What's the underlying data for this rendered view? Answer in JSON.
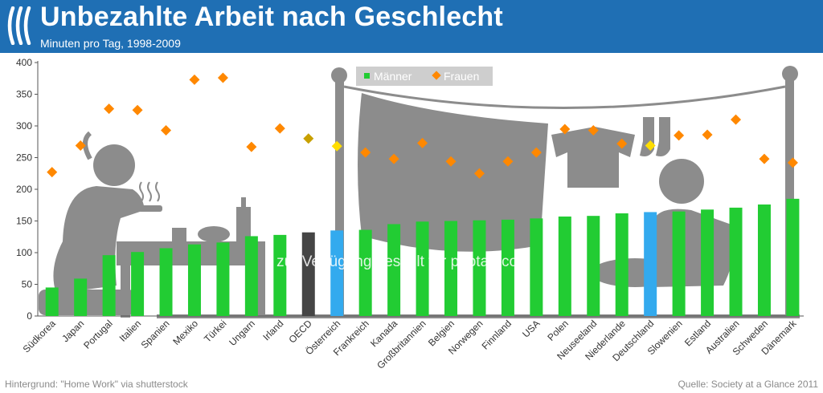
{
  "header": {
    "title": "Unbezahlte Arbeit nach Geschlecht",
    "subtitle": "Minuten pro Tag, 1998-2009"
  },
  "footer": {
    "left": "Hintergrund: \"Home Work\" via shutterstock",
    "right": "Quelle: Society at a Glance 2011"
  },
  "watermark": "zur Verfügung gestellt für photaq.com",
  "colors": {
    "header": "#1f6fb4",
    "men": "#22cc33",
    "men_highlight": "#33aaee",
    "oecd_bar": "#454545",
    "women": "#ff8800",
    "women_highlight": "#ffdd00",
    "oecd_marker": "#c8a000",
    "background_art": "#8c8c8c"
  },
  "chart_data": {
    "type": "bar",
    "categories": [
      "Südkorea",
      "Japan",
      "Portugal",
      "Italien",
      "Spanien",
      "Mexiko",
      "Türkei",
      "Ungarn",
      "Irland",
      "OECD",
      "Österreich",
      "Frankreich",
      "Kanada",
      "Großbritannien",
      "Belgien",
      "Norwegen",
      "Finnland",
      "USA",
      "Polen",
      "Neuseeland",
      "Niederlande",
      "Deutschland",
      "Slowenien",
      "Estland",
      "Australien",
      "Schweden",
      "Dänemark"
    ],
    "series": [
      {
        "name": "Männer",
        "kind": "bar",
        "values": [
          45,
          59,
          96,
          101,
          107,
          113,
          116,
          126,
          128,
          132,
          135,
          136,
          145,
          149,
          150,
          151,
          152,
          154,
          157,
          158,
          162,
          164,
          165,
          168,
          171,
          176,
          185
        ]
      },
      {
        "name": "Frauen",
        "kind": "marker",
        "values": [
          227,
          269,
          327,
          325,
          293,
          373,
          376,
          267,
          296,
          280,
          268,
          258,
          248,
          273,
          244,
          225,
          244,
          258,
          295,
          293,
          272,
          269,
          285,
          286,
          310,
          248,
          242
        ]
      }
    ],
    "highlight": [
      "OECD",
      "Österreich",
      "Deutschland"
    ],
    "ylim": [
      0,
      400
    ],
    "yticks": [
      0,
      50,
      100,
      150,
      200,
      250,
      300,
      350,
      400
    ],
    "xlabel": "",
    "ylabel": "",
    "grid": false,
    "legend_position": "top-center"
  }
}
